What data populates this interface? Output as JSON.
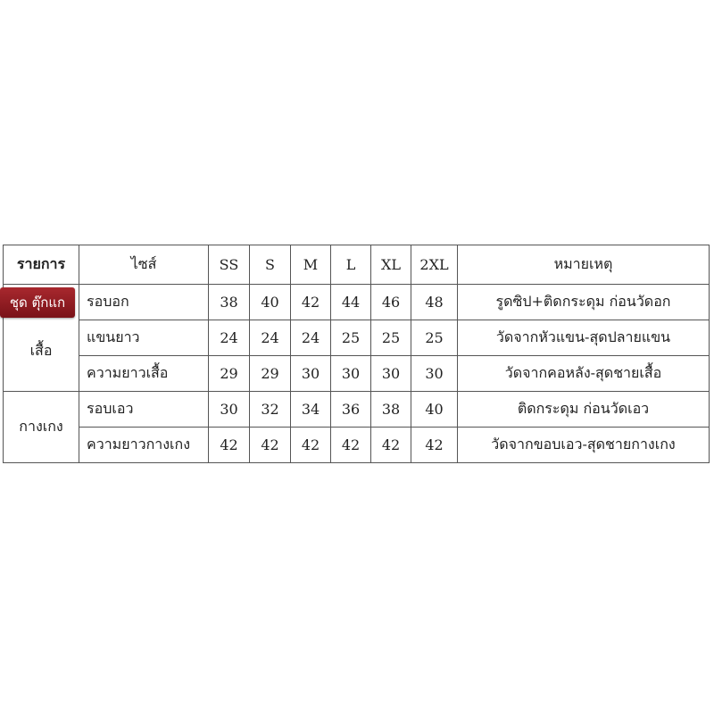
{
  "badge": {
    "label": "ชุด ตุ๊กแก",
    "color": "#8b1a1f"
  },
  "table": {
    "headers": {
      "item": "รายการ",
      "size": "ไซส์",
      "sizes": [
        "SS",
        "S",
        "M",
        "L",
        "XL",
        "2XL"
      ],
      "note": "หมายเหตุ"
    },
    "groups": [
      {
        "category": "เสื้อ",
        "rows": [
          {
            "item": "รอบอก",
            "values": [
              "38",
              "40",
              "42",
              "44",
              "46",
              "48"
            ],
            "note": "รูดซิป+ติดกระดุม ก่อนวัดอก"
          },
          {
            "item": "แขนยาว",
            "values": [
              "24",
              "24",
              "24",
              "25",
              "25",
              "25"
            ],
            "note": "วัดจากหัวแขน-สุดปลายแขน"
          },
          {
            "item": "ความยาวเสื้อ",
            "values": [
              "29",
              "29",
              "30",
              "30",
              "30",
              "30"
            ],
            "note": "วัดจากคอหลัง-สุดชายเสื้อ"
          }
        ]
      },
      {
        "category": "กางเกง",
        "rows": [
          {
            "item": "รอบเอว",
            "values": [
              "30",
              "32",
              "34",
              "36",
              "38",
              "40"
            ],
            "note": "ติดกระดุม ก่อนวัดเอว"
          },
          {
            "item": "ความยาวกางเกง",
            "values": [
              "42",
              "42",
              "42",
              "42",
              "42",
              "42"
            ],
            "note": "วัดจากขอบเอว-สุดชายกางเกง"
          }
        ]
      }
    ]
  }
}
